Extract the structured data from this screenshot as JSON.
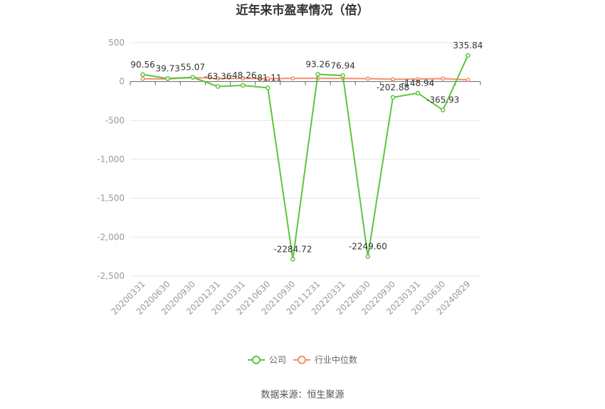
{
  "chart_data": {
    "type": "line",
    "title": "近年来市盈率情况（倍）",
    "categories": [
      "20200331",
      "20200630",
      "20200930",
      "20201231",
      "20210331",
      "20210630",
      "20210930",
      "20211231",
      "20220331",
      "20220630",
      "20220930",
      "20230331",
      "20230630",
      "20240829"
    ],
    "ylim": [
      -2500,
      500
    ],
    "yticks": [
      "500",
      "0",
      "-500",
      "-1,000",
      "-1,500",
      "-2,000",
      "-2,500"
    ],
    "ytick_values": [
      500,
      0,
      -500,
      -1000,
      -1500,
      -2000,
      -2500
    ],
    "grid": true,
    "legend_position": "bottom",
    "series": [
      {
        "name": "公司",
        "color": "#5cc63a",
        "values": [
          90.56,
          39.73,
          55.07,
          -63.36,
          -48.26,
          -81.11,
          -2284.72,
          93.26,
          76.94,
          -2249.6,
          -202.88,
          -148.94,
          -365.93,
          335.84
        ],
        "labels": [
          "90.56",
          "39.73",
          "55.07",
          "-63.36",
          "-48.26",
          "-81.11",
          "-2284.72",
          "93.26",
          "76.94",
          "-2249.60",
          "-202.88",
          "-148.94",
          "-365.93",
          "335.84"
        ]
      },
      {
        "name": "行业中位数",
        "color": "#f4906a",
        "values": [
          36,
          33,
          52,
          40,
          40,
          38,
          41,
          42,
          40,
          38,
          30,
          32,
          38,
          22
        ]
      }
    ]
  },
  "source": "数据来源：恒生聚源"
}
